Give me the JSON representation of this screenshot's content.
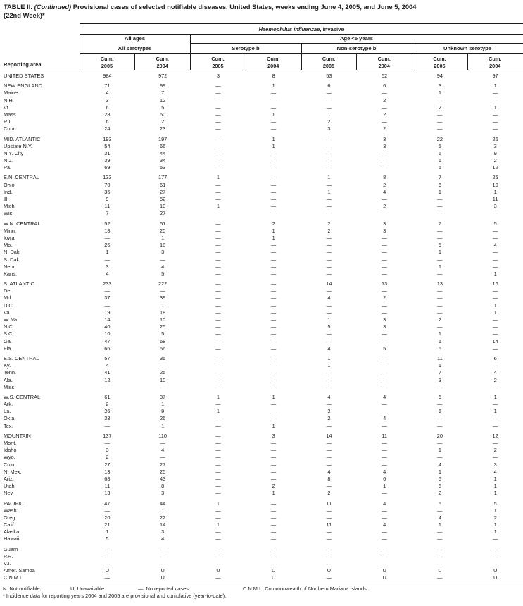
{
  "title": {
    "prefix": "TABLE II. ",
    "continued": "(Continued)",
    "rest": " Provisional cases of selected notifiable diseases, United States, weeks ending June 4, 2005, and June 5, 2004",
    "line2": "(22nd Week)*"
  },
  "header": {
    "reporting_area": "Reporting area",
    "disease_italic": "Haemophilus influenzae",
    "disease_suffix": ", invasive",
    "all_ages": "All ages",
    "age_under5": "Age <5 years",
    "all_serotypes": "All serotypes",
    "serotype_b": "Serotype b",
    "non_serotype_b": "Non-serotype b",
    "unknown_serotype": "Unknown serotype",
    "cum": "Cum.",
    "years": [
      "2005",
      "2004",
      "2005",
      "2004",
      "2005",
      "2004",
      "2005",
      "2004"
    ]
  },
  "table": {
    "rows": [
      {
        "area": "UNITED STATES",
        "gap": false,
        "values": [
          "984",
          "972",
          "3",
          "8",
          "53",
          "52",
          "94",
          "97"
        ]
      },
      {
        "area": "NEW ENGLAND",
        "gap": true,
        "values": [
          "71",
          "99",
          "—",
          "1",
          "6",
          "6",
          "3",
          "1"
        ]
      },
      {
        "area": "Maine",
        "gap": false,
        "values": [
          "4",
          "7",
          "—",
          "—",
          "—",
          "—",
          "1",
          "—"
        ]
      },
      {
        "area": "N.H.",
        "gap": false,
        "values": [
          "3",
          "12",
          "—",
          "—",
          "—",
          "2",
          "—",
          "—"
        ]
      },
      {
        "area": "Vt.",
        "gap": false,
        "values": [
          "6",
          "5",
          "—",
          "—",
          "—",
          "—",
          "2",
          "1"
        ]
      },
      {
        "area": "Mass.",
        "gap": false,
        "values": [
          "28",
          "50",
          "—",
          "1",
          "1",
          "2",
          "—",
          "—"
        ]
      },
      {
        "area": "R.I.",
        "gap": false,
        "values": [
          "6",
          "2",
          "—",
          "—",
          "2",
          "—",
          "—",
          "—"
        ]
      },
      {
        "area": "Conn.",
        "gap": false,
        "values": [
          "24",
          "23",
          "—",
          "—",
          "3",
          "2",
          "—",
          "—"
        ]
      },
      {
        "area": "MID. ATLANTIC",
        "gap": true,
        "values": [
          "193",
          "197",
          "—",
          "1",
          "—",
          "3",
          "22",
          "26"
        ]
      },
      {
        "area": "Upstate N.Y.",
        "gap": false,
        "values": [
          "54",
          "66",
          "—",
          "1",
          "—",
          "3",
          "5",
          "3"
        ]
      },
      {
        "area": "N.Y. City",
        "gap": false,
        "values": [
          "31",
          "44",
          "—",
          "—",
          "—",
          "—",
          "6",
          "9"
        ]
      },
      {
        "area": "N.J.",
        "gap": false,
        "values": [
          "39",
          "34",
          "—",
          "—",
          "—",
          "—",
          "6",
          "2"
        ]
      },
      {
        "area": "Pa.",
        "gap": false,
        "values": [
          "69",
          "53",
          "—",
          "—",
          "—",
          "—",
          "5",
          "12"
        ]
      },
      {
        "area": "E.N. CENTRAL",
        "gap": true,
        "values": [
          "133",
          "177",
          "1",
          "—",
          "1",
          "8",
          "7",
          "25"
        ]
      },
      {
        "area": "Ohio",
        "gap": false,
        "values": [
          "70",
          "61",
          "—",
          "—",
          "—",
          "2",
          "6",
          "10"
        ]
      },
      {
        "area": "Ind.",
        "gap": false,
        "values": [
          "36",
          "27",
          "—",
          "—",
          "1",
          "4",
          "1",
          "1"
        ]
      },
      {
        "area": "Ill.",
        "gap": false,
        "values": [
          "9",
          "52",
          "—",
          "—",
          "—",
          "—",
          "—",
          "11"
        ]
      },
      {
        "area": "Mich.",
        "gap": false,
        "values": [
          "11",
          "10",
          "1",
          "—",
          "—",
          "2",
          "—",
          "3"
        ]
      },
      {
        "area": "Wis.",
        "gap": false,
        "values": [
          "7",
          "27",
          "—",
          "—",
          "—",
          "—",
          "—",
          "—"
        ]
      },
      {
        "area": "W.N. CENTRAL",
        "gap": true,
        "values": [
          "52",
          "51",
          "—",
          "2",
          "2",
          "3",
          "7",
          "5"
        ]
      },
      {
        "area": "Minn.",
        "gap": false,
        "values": [
          "18",
          "20",
          "—",
          "1",
          "2",
          "3",
          "—",
          "—"
        ]
      },
      {
        "area": "Iowa",
        "gap": false,
        "values": [
          "—",
          "1",
          "—",
          "1",
          "—",
          "—",
          "—",
          "—"
        ]
      },
      {
        "area": "Mo.",
        "gap": false,
        "values": [
          "26",
          "18",
          "—",
          "—",
          "—",
          "—",
          "5",
          "4"
        ]
      },
      {
        "area": "N. Dak.",
        "gap": false,
        "values": [
          "1",
          "3",
          "—",
          "—",
          "—",
          "—",
          "1",
          "—"
        ]
      },
      {
        "area": "S. Dak.",
        "gap": false,
        "values": [
          "—",
          "—",
          "—",
          "—",
          "—",
          "—",
          "—",
          "—"
        ]
      },
      {
        "area": "Nebr.",
        "gap": false,
        "values": [
          "3",
          "4",
          "—",
          "—",
          "—",
          "—",
          "1",
          "—"
        ]
      },
      {
        "area": "Kans.",
        "gap": false,
        "values": [
          "4",
          "5",
          "—",
          "—",
          "—",
          "—",
          "—",
          "1"
        ]
      },
      {
        "area": "S. ATLANTIC",
        "gap": true,
        "values": [
          "233",
          "222",
          "—",
          "—",
          "14",
          "13",
          "13",
          "16"
        ]
      },
      {
        "area": "Del.",
        "gap": false,
        "values": [
          "—",
          "—",
          "—",
          "—",
          "—",
          "—",
          "—",
          "—"
        ]
      },
      {
        "area": "Md.",
        "gap": false,
        "values": [
          "37",
          "39",
          "—",
          "—",
          "4",
          "2",
          "—",
          "—"
        ]
      },
      {
        "area": "D.C.",
        "gap": false,
        "values": [
          "—",
          "1",
          "—",
          "—",
          "—",
          "—",
          "—",
          "1"
        ]
      },
      {
        "area": "Va.",
        "gap": false,
        "values": [
          "19",
          "18",
          "—",
          "—",
          "—",
          "—",
          "—",
          "1"
        ]
      },
      {
        "area": "W. Va.",
        "gap": false,
        "values": [
          "14",
          "10",
          "—",
          "—",
          "1",
          "3",
          "2",
          "—"
        ]
      },
      {
        "area": "N.C.",
        "gap": false,
        "values": [
          "40",
          "25",
          "—",
          "—",
          "5",
          "3",
          "—",
          "—"
        ]
      },
      {
        "area": "S.C.",
        "gap": false,
        "values": [
          "10",
          "5",
          "—",
          "—",
          "—",
          "—",
          "1",
          "—"
        ]
      },
      {
        "area": "Ga.",
        "gap": false,
        "values": [
          "47",
          "68",
          "—",
          "—",
          "—",
          "—",
          "5",
          "14"
        ]
      },
      {
        "area": "Fla.",
        "gap": false,
        "values": [
          "66",
          "56",
          "—",
          "—",
          "4",
          "5",
          "5",
          "—"
        ]
      },
      {
        "area": "E.S. CENTRAL",
        "gap": true,
        "values": [
          "57",
          "35",
          "—",
          "—",
          "1",
          "—",
          "11",
          "6"
        ]
      },
      {
        "area": "Ky.",
        "gap": false,
        "values": [
          "4",
          "—",
          "—",
          "—",
          "1",
          "—",
          "1",
          "—"
        ]
      },
      {
        "area": "Tenn.",
        "gap": false,
        "values": [
          "41",
          "25",
          "—",
          "—",
          "—",
          "—",
          "7",
          "4"
        ]
      },
      {
        "area": "Ala.",
        "gap": false,
        "values": [
          "12",
          "10",
          "—",
          "—",
          "—",
          "—",
          "3",
          "2"
        ]
      },
      {
        "area": "Miss.",
        "gap": false,
        "values": [
          "—",
          "—",
          "—",
          "—",
          "—",
          "—",
          "—",
          "—"
        ]
      },
      {
        "area": "W.S. CENTRAL",
        "gap": true,
        "values": [
          "61",
          "37",
          "1",
          "1",
          "4",
          "4",
          "6",
          "1"
        ]
      },
      {
        "area": "Ark.",
        "gap": false,
        "values": [
          "2",
          "1",
          "—",
          "—",
          "—",
          "—",
          "—",
          "—"
        ]
      },
      {
        "area": "La.",
        "gap": false,
        "values": [
          "26",
          "9",
          "1",
          "—",
          "2",
          "—",
          "6",
          "1"
        ]
      },
      {
        "area": "Okla.",
        "gap": false,
        "values": [
          "33",
          "26",
          "—",
          "—",
          "2",
          "4",
          "—",
          "—"
        ]
      },
      {
        "area": "Tex.",
        "gap": false,
        "values": [
          "—",
          "1",
          "—",
          "1",
          "—",
          "—",
          "—",
          "—"
        ]
      },
      {
        "area": "MOUNTAIN",
        "gap": true,
        "values": [
          "137",
          "110",
          "—",
          "3",
          "14",
          "11",
          "20",
          "12"
        ]
      },
      {
        "area": "Mont.",
        "gap": false,
        "values": [
          "—",
          "—",
          "—",
          "—",
          "—",
          "—",
          "—",
          "—"
        ]
      },
      {
        "area": "Idaho",
        "gap": false,
        "values": [
          "3",
          "4",
          "—",
          "—",
          "—",
          "—",
          "1",
          "2"
        ]
      },
      {
        "area": "Wyo.",
        "gap": false,
        "values": [
          "2",
          "—",
          "—",
          "—",
          "—",
          "—",
          "—",
          "—"
        ]
      },
      {
        "area": "Colo.",
        "gap": false,
        "values": [
          "27",
          "27",
          "—",
          "—",
          "—",
          "—",
          "4",
          "3"
        ]
      },
      {
        "area": "N. Mex.",
        "gap": false,
        "values": [
          "13",
          "25",
          "—",
          "—",
          "4",
          "4",
          "1",
          "4"
        ]
      },
      {
        "area": "Ariz.",
        "gap": false,
        "values": [
          "68",
          "43",
          "—",
          "—",
          "8",
          "6",
          "6",
          "1"
        ]
      },
      {
        "area": "Utah",
        "gap": false,
        "values": [
          "11",
          "8",
          "—",
          "2",
          "—",
          "1",
          "6",
          "1"
        ]
      },
      {
        "area": "Nev.",
        "gap": false,
        "values": [
          "13",
          "3",
          "—",
          "1",
          "2",
          "—",
          "2",
          "1"
        ]
      },
      {
        "area": "PACIFIC",
        "gap": true,
        "values": [
          "47",
          "44",
          "1",
          "—",
          "11",
          "4",
          "5",
          "5"
        ]
      },
      {
        "area": "Wash.",
        "gap": false,
        "values": [
          "—",
          "1",
          "—",
          "—",
          "—",
          "—",
          "—",
          "1"
        ]
      },
      {
        "area": "Oreg.",
        "gap": false,
        "values": [
          "20",
          "22",
          "—",
          "—",
          "—",
          "—",
          "4",
          "2"
        ]
      },
      {
        "area": "Calif.",
        "gap": false,
        "values": [
          "21",
          "14",
          "1",
          "—",
          "11",
          "4",
          "1",
          "1"
        ]
      },
      {
        "area": "Alaska",
        "gap": false,
        "values": [
          "1",
          "3",
          "—",
          "—",
          "—",
          "—",
          "—",
          "1"
        ]
      },
      {
        "area": "Hawaii",
        "gap": false,
        "values": [
          "5",
          "4",
          "—",
          "—",
          "—",
          "—",
          "—",
          "—"
        ]
      },
      {
        "area": "Guam",
        "gap": true,
        "values": [
          "—",
          "—",
          "—",
          "—",
          "—",
          "—",
          "—",
          "—"
        ]
      },
      {
        "area": "P.R.",
        "gap": false,
        "values": [
          "—",
          "—",
          "—",
          "—",
          "—",
          "—",
          "—",
          "—"
        ]
      },
      {
        "area": "V.I.",
        "gap": false,
        "values": [
          "—",
          "—",
          "—",
          "—",
          "—",
          "—",
          "—",
          "—"
        ]
      },
      {
        "area": "Amer. Samoa",
        "gap": false,
        "values": [
          "U",
          "U",
          "U",
          "U",
          "U",
          "U",
          "U",
          "U"
        ]
      },
      {
        "area": "C.N.M.I.",
        "gap": false,
        "values": [
          "—",
          "U",
          "—",
          "U",
          "—",
          "U",
          "—",
          "U"
        ]
      }
    ]
  },
  "footnotes": {
    "legend": [
      "N: Not notifiable.",
      "U: Unavailable.",
      "—: No reported cases.",
      "C.N.M.I.: Commonwealth of Northern Mariana Islands."
    ],
    "note": "* Incidence data for reporting years 2004 and 2005 are provisional and cumulative (year-to-date)."
  },
  "colors": {
    "text": "#1c1c1c",
    "background": "#ffffff",
    "rule": "#1c1c1c"
  }
}
